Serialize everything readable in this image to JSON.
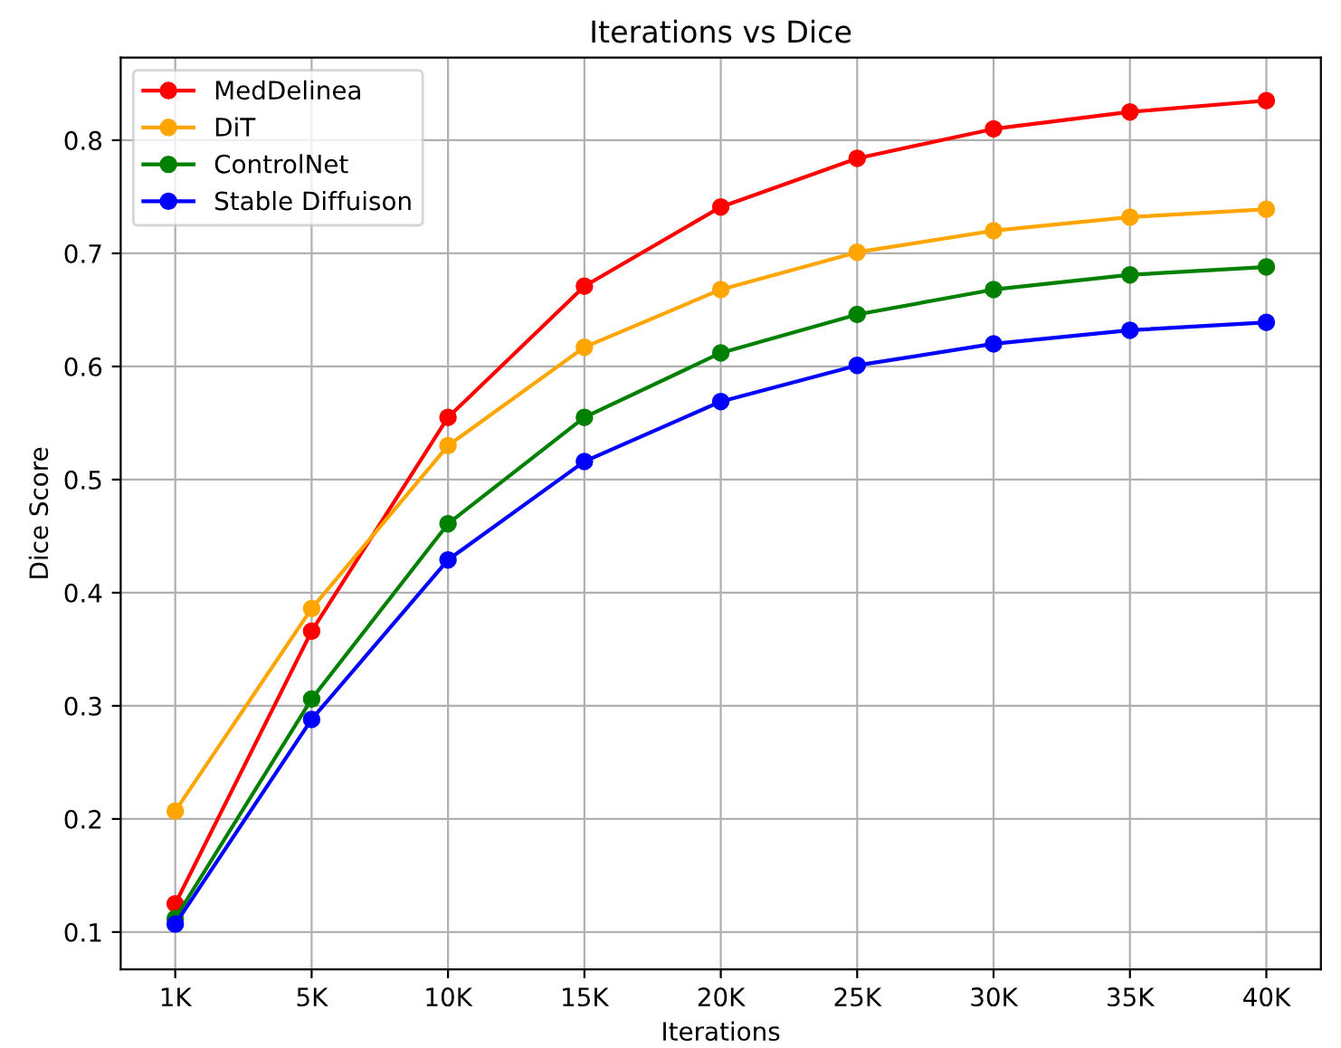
{
  "chart_data": {
    "type": "line",
    "title": "Iterations vs Dice",
    "xlabel": "Iterations",
    "ylabel": "Dice Score",
    "categories": [
      "1K",
      "5K",
      "10K",
      "15K",
      "20K",
      "25K",
      "30K",
      "35K",
      "40K"
    ],
    "series": [
      {
        "name": "MedDelinea",
        "color": "#ff0000",
        "values": [
          0.125,
          0.366,
          0.555,
          0.671,
          0.741,
          0.784,
          0.81,
          0.825,
          0.835
        ]
      },
      {
        "name": "DiT",
        "color": "#ffa500",
        "values": [
          0.207,
          0.386,
          0.53,
          0.617,
          0.668,
          0.701,
          0.72,
          0.732,
          0.739
        ]
      },
      {
        "name": "ControlNet",
        "color": "#008000",
        "values": [
          0.112,
          0.306,
          0.461,
          0.555,
          0.612,
          0.646,
          0.668,
          0.681,
          0.688
        ]
      },
      {
        "name": "Stable Diffuison",
        "color": "#0000ff",
        "values": [
          0.107,
          0.288,
          0.429,
          0.516,
          0.569,
          0.601,
          0.62,
          0.632,
          0.639
        ]
      }
    ],
    "ylim": [
      0.067,
      0.873
    ],
    "yticks": [
      0.1,
      0.2,
      0.3,
      0.4,
      0.5,
      0.6,
      0.7,
      0.8
    ],
    "grid": true,
    "legend": "top left",
    "marker": "circle",
    "line_style": "solid"
  }
}
